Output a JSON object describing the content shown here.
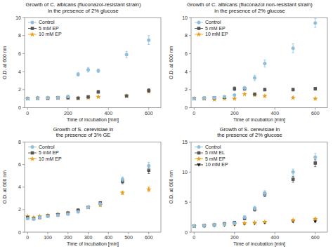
{
  "chart_data": [
    {
      "type": "scatter",
      "title": "Growth of C. albicans (fluconazol-resistant strain)\nin the presence of 2% glucose",
      "x_label": "Time of incubation [min]",
      "y_label": "O.D. at 600 nm",
      "xlim": [
        -15,
        660
      ],
      "xticks": [
        0,
        200,
        400,
        600
      ],
      "ylim": [
        0,
        10
      ],
      "yticks": [
        0,
        2,
        4,
        6,
        8,
        10
      ],
      "grid": false,
      "legend": "upper left",
      "x": [
        0,
        50,
        100,
        150,
        200,
        250,
        300,
        350,
        490,
        600
      ],
      "series": [
        {
          "name": "Control",
          "color": "#8fbfdc",
          "marker": "circle",
          "values": [
            1.0,
            1.05,
            1.1,
            1.1,
            1.25,
            3.7,
            4.2,
            4.1,
            5.9,
            7.5
          ],
          "errors": [
            0.05,
            0.05,
            0.05,
            0.05,
            0.15,
            0.2,
            0.25,
            0.2,
            0.35,
            0.5
          ]
        },
        {
          "name": "5 mM EP",
          "color": "#555555",
          "marker": "square",
          "values": [
            1.0,
            1.05,
            1.05,
            1.1,
            1.1,
            1.05,
            1.2,
            1.75,
            1.3,
            1.9
          ],
          "errors": [
            0.05,
            0.05,
            0.05,
            0.05,
            0.05,
            0.05,
            0.1,
            0.15,
            0.1,
            0.2
          ]
        },
        {
          "name": "10 mM EP",
          "color": "#e8a020",
          "marker": "star",
          "values": [
            1.0,
            1.05,
            1.05,
            1.1,
            1.1,
            1.05,
            1.1,
            1.2,
            1.3,
            1.8
          ],
          "errors": [
            0.05,
            0.05,
            0.05,
            0.05,
            0.05,
            0.05,
            0.05,
            0.05,
            0.1,
            0.1
          ]
        }
      ]
    },
    {
      "type": "scatter",
      "title": "Growth of C. albicans (fluconazol non-resistant strain)\nin the presence of 2% glucose",
      "x_label": "Time of incubation [min]",
      "y_label": "O.D. at 600 nm",
      "xlim": [
        -15,
        660
      ],
      "xticks": [
        0,
        200,
        400,
        600
      ],
      "ylim": [
        0,
        10
      ],
      "yticks": [
        0,
        2,
        4,
        6,
        8,
        10
      ],
      "grid": false,
      "legend": "upper left",
      "x": [
        0,
        50,
        100,
        150,
        200,
        250,
        300,
        350,
        490,
        600
      ],
      "series": [
        {
          "name": "Control",
          "color": "#8fbfdc",
          "marker": "circle",
          "values": [
            1.0,
            1.05,
            1.1,
            1.2,
            1.4,
            2.2,
            3.3,
            4.9,
            6.6,
            9.4
          ],
          "errors": [
            0.05,
            0.05,
            0.05,
            0.1,
            0.1,
            0.15,
            0.3,
            0.4,
            0.5,
            0.5
          ]
        },
        {
          "name": "5 mM EP",
          "color": "#555555",
          "marker": "square",
          "values": [
            1.0,
            1.05,
            1.1,
            1.15,
            2.1,
            2.1,
            1.5,
            2.0,
            2.0,
            2.1
          ],
          "errors": [
            0.05,
            0.05,
            0.05,
            0.05,
            0.2,
            0.15,
            0.1,
            0.15,
            0.15,
            0.15
          ]
        },
        {
          "name": "10 mM EP",
          "color": "#e8a020",
          "marker": "star",
          "values": [
            1.0,
            1.0,
            0.9,
            1.0,
            1.0,
            1.5,
            1.4,
            1.3,
            1.1,
            1.0
          ],
          "errors": [
            0.05,
            0.05,
            0.05,
            0.05,
            0.05,
            0.1,
            0.1,
            0.1,
            0.1,
            0.05
          ]
        }
      ]
    },
    {
      "type": "scatter",
      "title": "Growth of S. cerevisiae in\nthe presence of 3% GE",
      "x_label": "Time of incubation [min]",
      "y_label": "O.D. at 600 nm",
      "xlim": [
        -15,
        660
      ],
      "xticks": [
        0,
        100,
        200,
        300,
        400,
        500,
        600
      ],
      "ylim": [
        0,
        8
      ],
      "yticks": [
        0,
        2,
        4,
        6,
        8
      ],
      "grid": false,
      "legend": "upper left",
      "x": [
        0,
        30,
        60,
        100,
        150,
        200,
        250,
        300,
        360,
        470,
        600
      ],
      "series": [
        {
          "name": "Control",
          "color": "#8fbfdc",
          "marker": "circle",
          "values": [
            1.2,
            1.15,
            1.3,
            1.4,
            1.5,
            1.6,
            1.8,
            2.2,
            2.5,
            4.7,
            5.9
          ],
          "errors": [
            0.05,
            0.05,
            0.05,
            0.05,
            0.05,
            0.05,
            0.1,
            0.1,
            0.1,
            0.2,
            0.3
          ]
        },
        {
          "name": "5 mM EP",
          "color": "#555555",
          "marker": "square",
          "values": [
            1.3,
            1.2,
            1.3,
            1.45,
            1.55,
            1.7,
            1.95,
            2.2,
            2.6,
            4.5,
            5.5
          ],
          "errors": [
            0.05,
            0.05,
            0.05,
            0.05,
            0.05,
            0.05,
            0.1,
            0.1,
            0.1,
            0.2,
            0.3
          ]
        },
        {
          "name": "10 mM EP",
          "color": "#e8a020",
          "marker": "star",
          "values": [
            1.4,
            1.3,
            1.4,
            1.5,
            1.6,
            1.7,
            1.9,
            2.2,
            2.4,
            3.5,
            3.8
          ],
          "errors": [
            0.05,
            0.05,
            0.05,
            0.05,
            0.05,
            0.05,
            0.1,
            0.1,
            0.1,
            0.15,
            0.2
          ]
        }
      ]
    },
    {
      "type": "scatter",
      "title": "Growth of S. cerevisiae in\nthe presence of 2% glucose",
      "x_label": "Time of incubation [min]",
      "y_label": "O.D. at 600 nm",
      "xlim": [
        -15,
        660
      ],
      "xticks": [
        0,
        200,
        400,
        600
      ],
      "ylim": [
        0,
        15
      ],
      "yticks": [
        0,
        5,
        10,
        15
      ],
      "grid": false,
      "legend": "upper left",
      "x": [
        0,
        50,
        100,
        150,
        200,
        250,
        300,
        350,
        490,
        600
      ],
      "series": [
        {
          "name": "Control",
          "color": "#8fbfdc",
          "marker": "circle",
          "values": [
            1.0,
            1.1,
            1.2,
            1.3,
            1.5,
            2.5,
            4.0,
            6.5,
            10.0,
            12.5
          ],
          "errors": [
            0.05,
            0.05,
            0.1,
            0.1,
            0.1,
            0.2,
            0.3,
            0.4,
            0.5,
            0.6
          ]
        },
        {
          "name": "5 mM EL",
          "color": "#555555",
          "marker": "square",
          "values": [
            1.0,
            1.1,
            1.2,
            1.4,
            1.6,
            2.3,
            3.8,
            6.3,
            8.8,
            11.5
          ],
          "errors": [
            0.05,
            0.05,
            0.1,
            0.1,
            0.1,
            0.2,
            0.3,
            0.4,
            0.5,
            0.6
          ]
        },
        {
          "name": "5 mM EP",
          "color": "#e8a020",
          "marker": "star",
          "values": [
            1.0,
            1.1,
            1.2,
            1.3,
            1.4,
            1.5,
            1.6,
            1.7,
            2.0,
            2.2
          ],
          "errors": [
            0.05,
            0.05,
            0.05,
            0.05,
            0.05,
            0.05,
            0.05,
            0.1,
            0.1,
            0.15
          ]
        },
        {
          "name": "10 mM EP",
          "color": "#1a1a1a",
          "marker": "triangle-down",
          "values": [
            1.0,
            1.0,
            1.1,
            1.2,
            1.3,
            1.4,
            1.5,
            1.6,
            1.8,
            1.8
          ],
          "errors": [
            0.05,
            0.05,
            0.05,
            0.05,
            0.05,
            0.05,
            0.05,
            0.05,
            0.1,
            0.1
          ]
        }
      ]
    }
  ]
}
